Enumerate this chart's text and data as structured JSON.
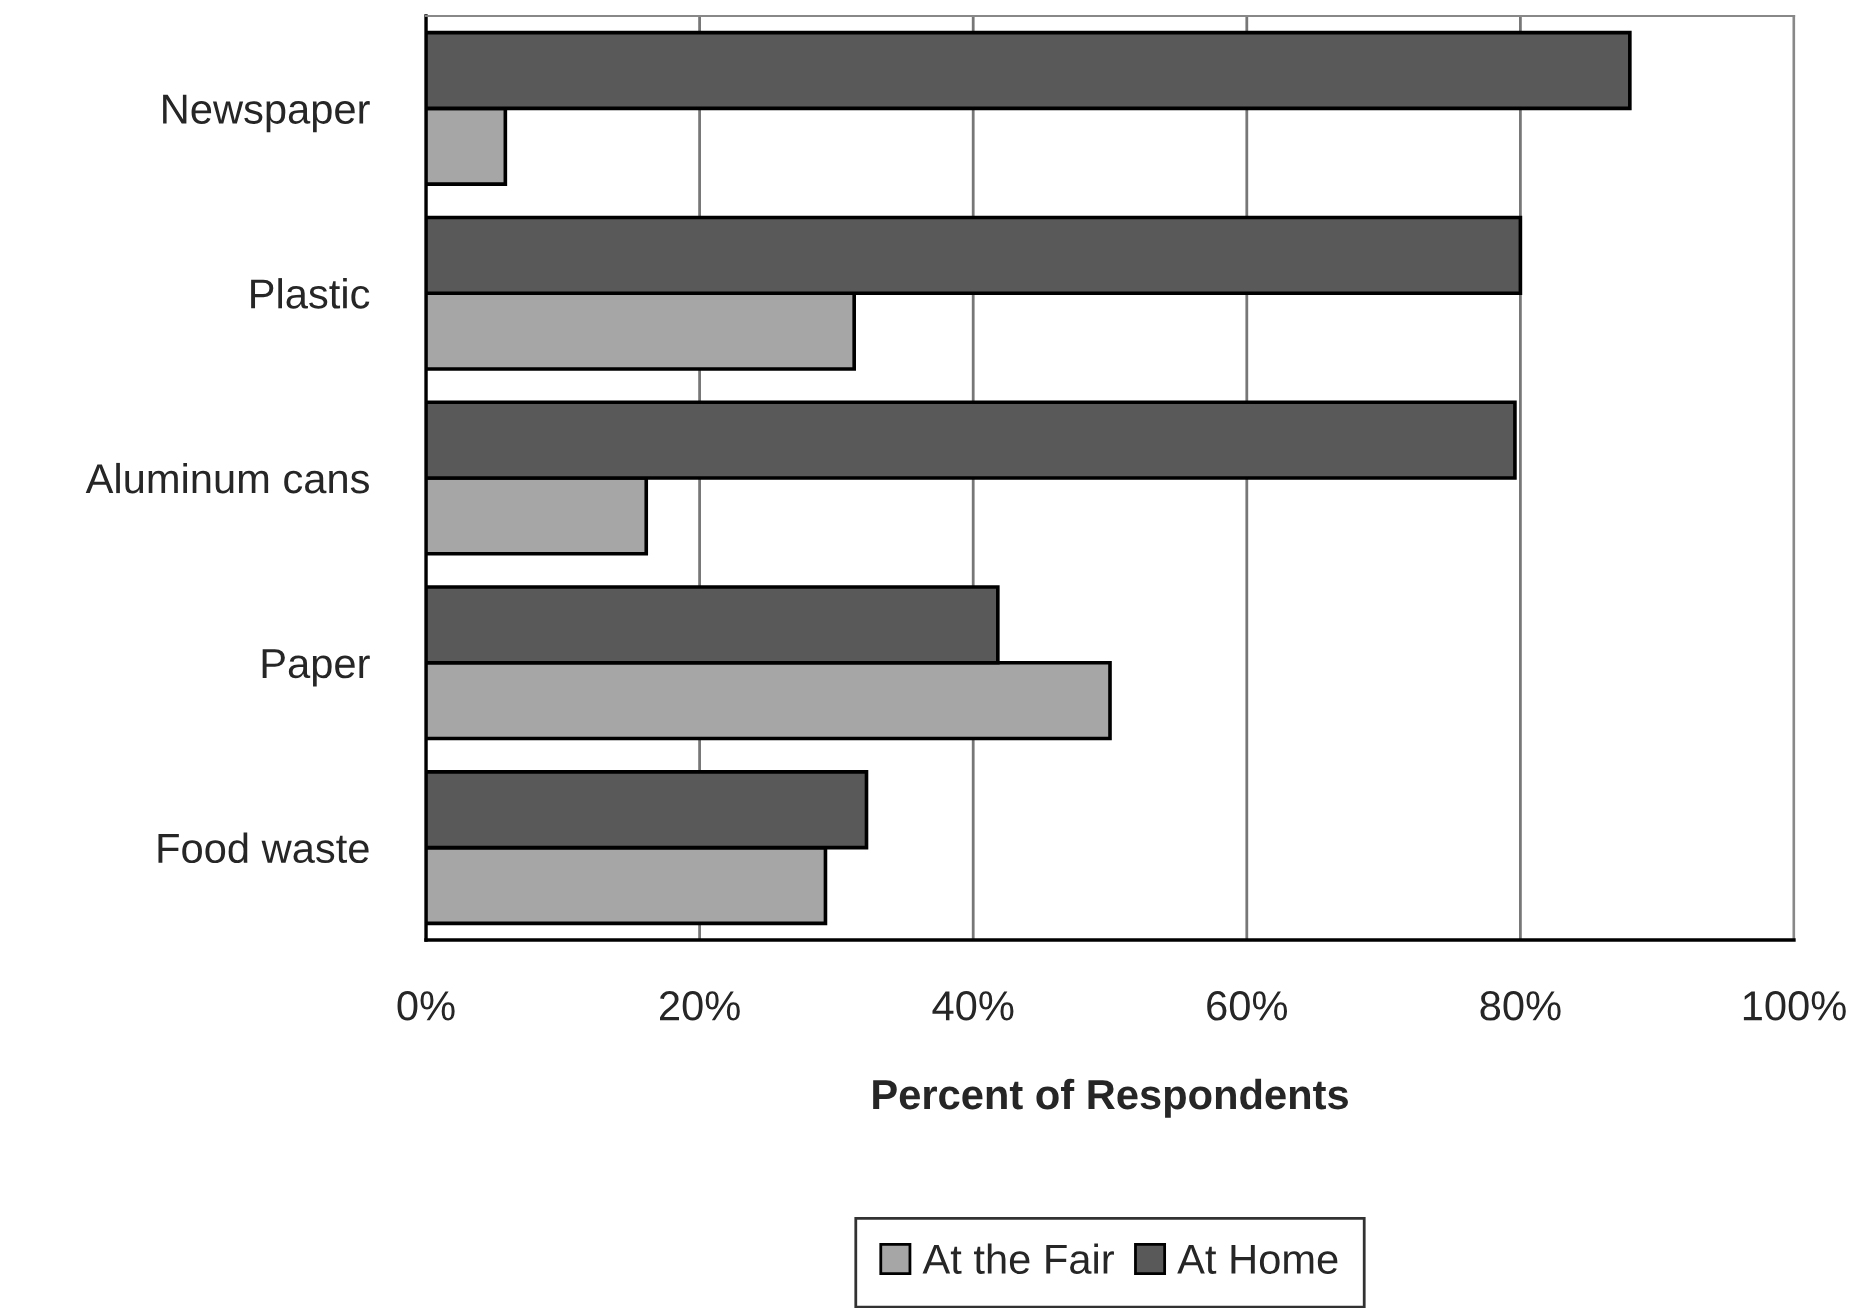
{
  "chart_data": {
    "type": "bar",
    "orientation": "horizontal",
    "xlabel": "Percent of Respondents",
    "categories": [
      "Newspaper",
      "Plastic",
      "Aluminum cans",
      "Paper",
      "Food waste"
    ],
    "series": [
      {
        "name": "At the Fair",
        "color": "#a6a6a6",
        "values": [
          5.8,
          31.3,
          16.1,
          50,
          29.2
        ]
      },
      {
        "name": "At Home",
        "color": "#595959",
        "values": [
          88,
          80,
          79.6,
          41.8,
          32.2
        ]
      }
    ],
    "xlim": [
      0,
      100
    ],
    "xticks": [
      {
        "value": 0,
        "label": "0%"
      },
      {
        "value": 20,
        "label": "20%"
      },
      {
        "value": 40,
        "label": "40%"
      },
      {
        "value": 60,
        "label": "60%"
      },
      {
        "value": 80,
        "label": "80%"
      },
      {
        "value": 100,
        "label": "100%"
      }
    ],
    "grid": "x",
    "legend": "bottom"
  }
}
